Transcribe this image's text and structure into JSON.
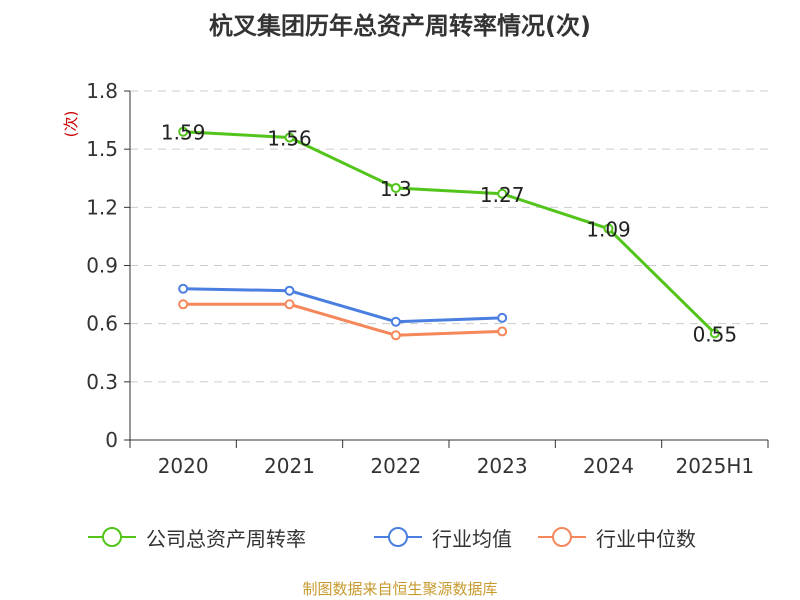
{
  "title": "杭叉集团历年总资产周转率情况(次)",
  "source": "制图数据来自恒生聚源数据库",
  "colors": {
    "axis": "#333333",
    "grid": "#cccccc",
    "unit": "#cc0000"
  },
  "chart_data": {
    "type": "line",
    "title": "杭叉集团历年总资产周转率情况(次)",
    "ylabel": "(次)",
    "xlabel": "",
    "ylim": [
      0,
      1.8
    ],
    "yticks": [
      "0",
      "0.3",
      "0.6",
      "0.9",
      "1.2",
      "1.5",
      "1.8"
    ],
    "ytick_values": [
      0,
      0.3,
      0.6,
      0.9,
      1.2,
      1.5,
      1.8
    ],
    "grid": true,
    "legend_position": "bottom",
    "categories": [
      "2020",
      "2021",
      "2022",
      "2023",
      "2024",
      "2025H1"
    ],
    "series": [
      {
        "name": "公司总资产周转率",
        "color": "#52c41a",
        "values": [
          1.59,
          1.56,
          1.3,
          1.27,
          1.09,
          0.55
        ],
        "labels": [
          "1.59",
          "1.56",
          "1.3",
          "1.27",
          "1.09",
          "0.55"
        ]
      },
      {
        "name": "行业均值",
        "color": "#4a7ee0",
        "values": [
          0.78,
          0.77,
          0.61,
          0.63,
          null,
          null
        ]
      },
      {
        "name": "行业中位数",
        "color": "#f5875a",
        "values": [
          0.7,
          0.7,
          0.54,
          0.56,
          null,
          null
        ]
      }
    ]
  }
}
